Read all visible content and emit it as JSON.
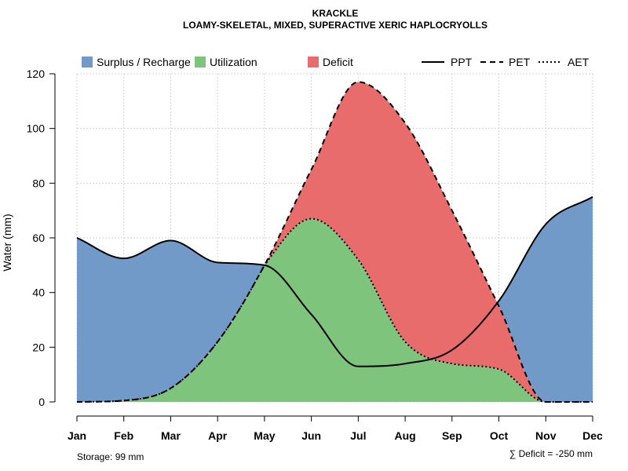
{
  "chart_data": {
    "type": "area",
    "title": "KRACKLE",
    "subtitle": "LOAMY-SKELETAL, MIXED, SUPERACTIVE XERIC HAPLOCRYOLLS",
    "ylabel": "Water (mm)",
    "xlabel": "",
    "ylim": [
      0,
      120
    ],
    "yticks": [
      "0",
      "20",
      "40",
      "60",
      "80",
      "100",
      "120"
    ],
    "grid": true,
    "categories": [
      "Jan",
      "Feb",
      "Mar",
      "Apr",
      "May",
      "Jun",
      "Jul",
      "Aug",
      "Sep",
      "Oct",
      "Nov",
      "Dec"
    ],
    "series": [
      {
        "name": "PPT",
        "style": "solid",
        "values": [
          60,
          52.5,
          59,
          51,
          50,
          32,
          13,
          14,
          19,
          37,
          65,
          75
        ]
      },
      {
        "name": "PET",
        "style": "dashed",
        "values": [
          0,
          0.5,
          5,
          22,
          50,
          85,
          117,
          102,
          70,
          35,
          0,
          0
        ]
      },
      {
        "name": "AET",
        "style": "dotted",
        "values": [
          0,
          0.5,
          5,
          22,
          50,
          67,
          52,
          22,
          14,
          12,
          0,
          0
        ]
      }
    ],
    "legend": {
      "placement": "top",
      "fills": [
        {
          "label": "Surplus / Recharge",
          "color": "#729ac9"
        },
        {
          "label": "Utilization",
          "color": "#7fc47c"
        },
        {
          "label": "Deficit",
          "color": "#e96c6c"
        }
      ],
      "lines": [
        {
          "label": "PPT",
          "style": "solid"
        },
        {
          "label": "PET",
          "style": "dashed"
        },
        {
          "label": "AET",
          "style": "dotted"
        }
      ]
    },
    "annotations": {
      "storage": "Storage: 99 mm",
      "deficit": "∑ Deficit = -250 mm"
    },
    "colors": {
      "surplus": "#729ac9",
      "utilization": "#7fc47c",
      "deficit": "#e96c6c",
      "grid": "#d3d3d3"
    }
  }
}
